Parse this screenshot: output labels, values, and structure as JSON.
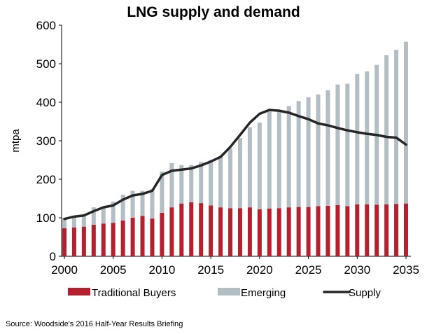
{
  "chart_data": {
    "type": "bar",
    "title": "LNG supply and demand",
    "ylabel": "mtpa",
    "xlabel": "",
    "ylim": [
      0,
      600
    ],
    "yticks": [
      0,
      100,
      200,
      300,
      400,
      500,
      600
    ],
    "xticks": [
      2000,
      2005,
      2010,
      2015,
      2020,
      2025,
      2030,
      2035
    ],
    "grid": false,
    "legend": "bottom",
    "stacked": true,
    "x": [
      2000,
      2001,
      2002,
      2003,
      2004,
      2005,
      2006,
      2007,
      2008,
      2009,
      2010,
      2011,
      2012,
      2013,
      2014,
      2015,
      2016,
      2017,
      2018,
      2019,
      2020,
      2021,
      2022,
      2023,
      2024,
      2025,
      2026,
      2027,
      2028,
      2029,
      2030,
      2031,
      2032,
      2033,
      2034,
      2035
    ],
    "series": [
      {
        "name": "Traditional Buyers",
        "kind": "bar",
        "color": "#b5202e",
        "values": [
          73,
          75,
          77,
          82,
          85,
          87,
          93,
          100,
          105,
          98,
          113,
          127,
          137,
          140,
          138,
          132,
          127,
          125,
          125,
          127,
          122,
          124,
          125,
          127,
          128,
          128,
          130,
          131,
          133,
          130,
          135,
          135,
          134,
          135,
          136,
          137
        ]
      },
      {
        "name": "Emerging",
        "kind": "bar",
        "color": "#b2bec3",
        "values": [
          27,
          25,
          28,
          45,
          45,
          55,
          67,
          70,
          65,
          77,
          107,
          115,
          100,
          97,
          107,
          118,
          133,
          155,
          182,
          208,
          225,
          252,
          252,
          263,
          275,
          285,
          290,
          300,
          313,
          318,
          338,
          345,
          363,
          387,
          400,
          420
        ]
      },
      {
        "name": "Supply",
        "kind": "line",
        "color": "#262626",
        "values": [
          97,
          103,
          106,
          117,
          127,
          132,
          147,
          158,
          162,
          170,
          211,
          222,
          225,
          228,
          236,
          246,
          258,
          284,
          315,
          347,
          370,
          380,
          378,
          373,
          364,
          356,
          345,
          340,
          333,
          327,
          322,
          318,
          315,
          310,
          308,
          290
        ]
      }
    ]
  },
  "source_text": "Source: Woodside's 2016 Half-Year Results Briefing"
}
